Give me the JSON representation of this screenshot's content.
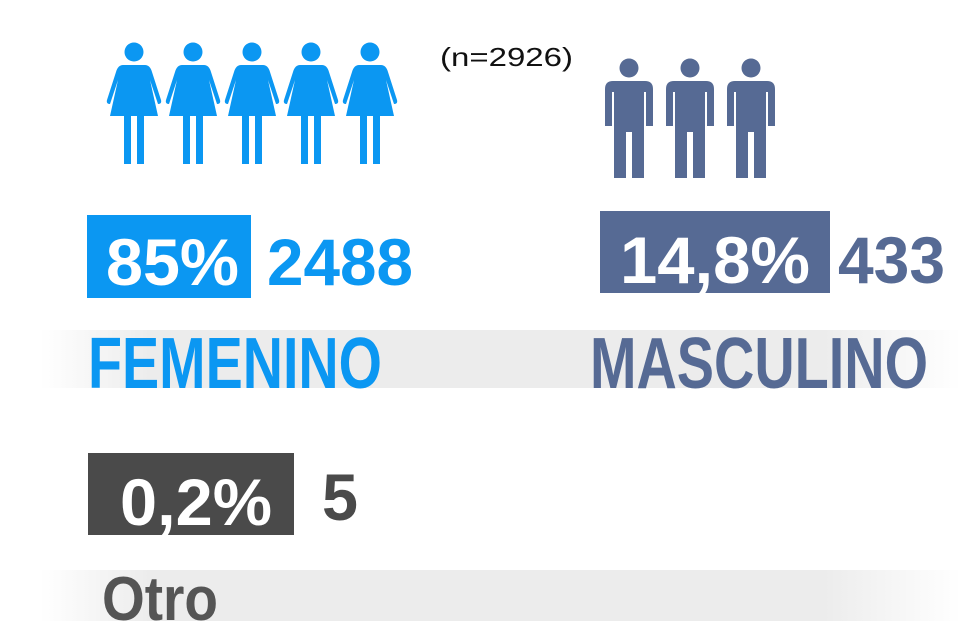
{
  "sample": "(n=2926)",
  "groups": [
    {
      "percent": "85%",
      "count": "2488",
      "label": "FEMENINO"
    },
    {
      "percent": "14,8%",
      "count": "433",
      "label": "MASCULINO"
    },
    {
      "percent": "0,2%",
      "count": "5",
      "label": "Otro"
    }
  ]
}
